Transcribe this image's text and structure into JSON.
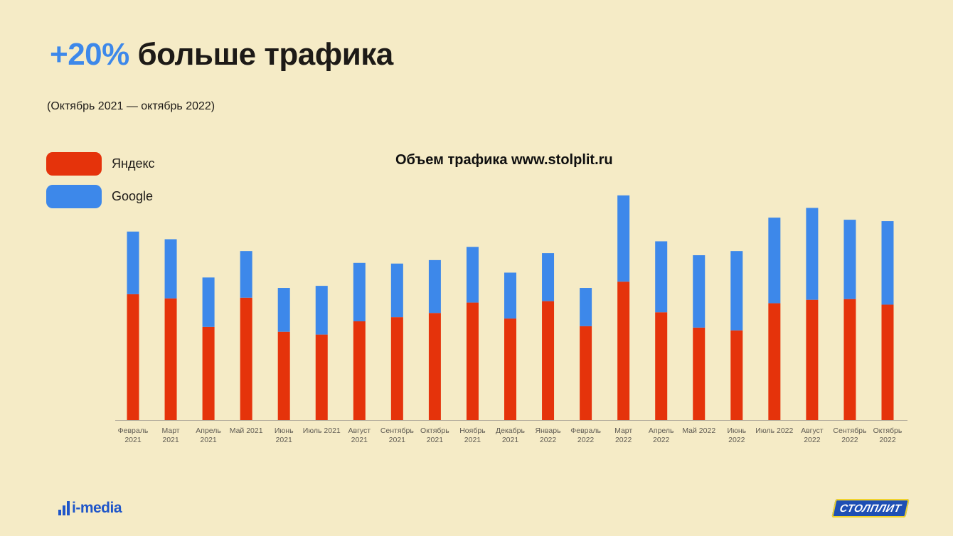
{
  "header": {
    "accent": "+20%",
    "title_rest": " больше трафика",
    "subtitle": "(Октябрь 2021 — октябрь 2022)"
  },
  "legend": [
    {
      "label": "Яндекс",
      "color": "#e5330b"
    },
    {
      "label": "Google",
      "color": "#3d88ea"
    }
  ],
  "logos": {
    "left": "i-media",
    "right": "СТОЛПЛИТ"
  },
  "colors": {
    "background": "#f5ebc6",
    "accent": "#3d88ea",
    "yandex": "#e5330b",
    "google": "#3d88ea"
  },
  "chart_data": {
    "type": "bar",
    "stacked": true,
    "title": "Объем трафика www.stolplit.ru",
    "xlabel": "",
    "ylabel": "",
    "ylim": [
      0,
      330
    ],
    "grid": false,
    "legend_position": "top-left",
    "categories": [
      [
        "Февраль",
        "2021"
      ],
      [
        "Март",
        "2021"
      ],
      [
        "Апрель",
        "2021"
      ],
      [
        "Май 2021",
        ""
      ],
      [
        "Июнь",
        "2021"
      ],
      [
        "Июль 2021",
        ""
      ],
      [
        "Август",
        "2021"
      ],
      [
        "Сентябрь",
        "2021"
      ],
      [
        "Октябрь",
        "2021"
      ],
      [
        "Ноябрь",
        "2021"
      ],
      [
        "Декабрь",
        "2021"
      ],
      [
        "Январь",
        "2022"
      ],
      [
        "Февраль",
        "2022"
      ],
      [
        "Март",
        "2022"
      ],
      [
        "Апрель",
        "2022"
      ],
      [
        "Май 2022",
        ""
      ],
      [
        "Июнь",
        "2022"
      ],
      [
        "Июль 2022",
        ""
      ],
      [
        "Август",
        "2022"
      ],
      [
        "Сентябрь",
        "2022"
      ],
      [
        "Октябрь",
        "2022"
      ]
    ],
    "series": [
      {
        "name": "Яндекс",
        "color": "#e5330b",
        "values": [
          181,
          175,
          134,
          176,
          127,
          123,
          142,
          148,
          154,
          169,
          146,
          171,
          135,
          199,
          155,
          133,
          129,
          168,
          173,
          174,
          166
        ]
      },
      {
        "name": "Google",
        "color": "#3d88ea",
        "values": [
          90,
          85,
          71,
          67,
          63,
          70,
          84,
          77,
          76,
          80,
          66,
          69,
          55,
          124,
          102,
          104,
          114,
          123,
          132,
          114,
          120
        ]
      }
    ]
  }
}
